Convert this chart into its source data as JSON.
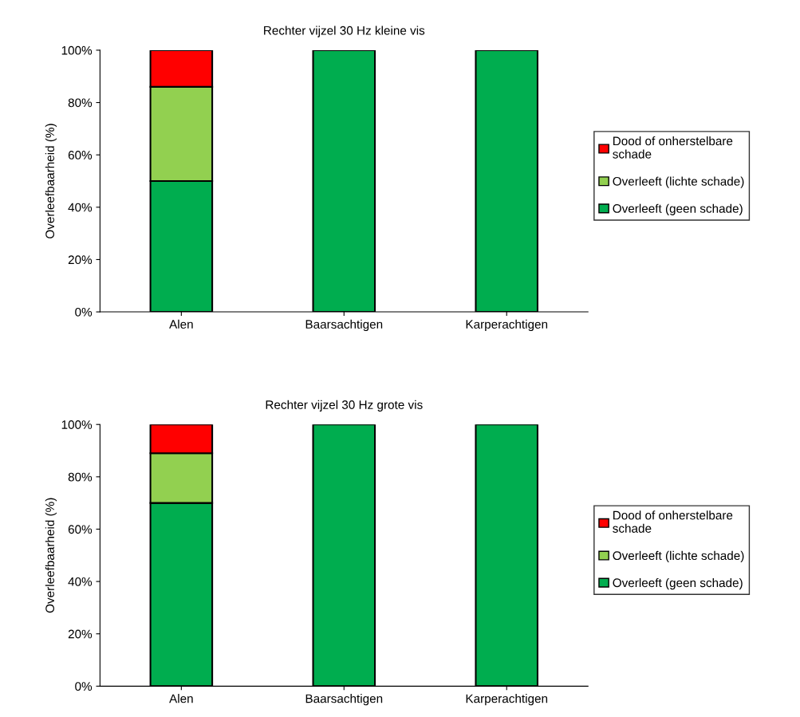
{
  "chart_data": [
    {
      "type": "bar",
      "title": "Rechter vijzel 30 Hz kleine vis",
      "ylabel": "Overleefbaarheid (%)",
      "categories": [
        "Alen",
        "Baarsachtigen",
        "Karperachtigen"
      ],
      "stacked": true,
      "legend": "right",
      "ylim": [
        0,
        100
      ],
      "yticks": [
        {
          "value": 0,
          "label": "0%"
        },
        {
          "value": 20,
          "label": "20%"
        },
        {
          "value": 40,
          "label": "40%"
        },
        {
          "value": 60,
          "label": "60%"
        },
        {
          "value": 80,
          "label": "80%"
        },
        {
          "value": 100,
          "label": "100%"
        }
      ],
      "series": [
        {
          "name": "Overleeft (geen schade)",
          "color": "#00ad4f",
          "values": [
            50,
            100,
            100
          ]
        },
        {
          "name": "Overleeft (lichte schade)",
          "color": "#92d050",
          "values": [
            36,
            null,
            null
          ]
        },
        {
          "name": "Dood of onherstelbare schade",
          "color": "#ff0000",
          "values": [
            14,
            null,
            null
          ]
        }
      ]
    },
    {
      "type": "bar",
      "title": "Rechter vijzel 30 Hz grote vis",
      "ylabel": "Overleefbaarheid (%)",
      "categories": [
        "Alen",
        "Baarsachtigen",
        "Karperachtigen"
      ],
      "stacked": true,
      "legend": "right",
      "ylim": [
        0,
        100
      ],
      "yticks": [
        {
          "value": 0,
          "label": "0%"
        },
        {
          "value": 20,
          "label": "20%"
        },
        {
          "value": 40,
          "label": "40%"
        },
        {
          "value": 60,
          "label": "60%"
        },
        {
          "value": 80,
          "label": "80%"
        },
        {
          "value": 100,
          "label": "100%"
        }
      ],
      "series": [
        {
          "name": "Overleeft (geen schade)",
          "color": "#00ad4f",
          "values": [
            70,
            100,
            100
          ]
        },
        {
          "name": "Overleeft (lichte schade)",
          "color": "#92d050",
          "values": [
            19,
            null,
            null
          ]
        },
        {
          "name": "Dood of onherstelbare schade",
          "color": "#ff0000",
          "values": [
            11,
            null,
            null
          ]
        }
      ]
    }
  ]
}
